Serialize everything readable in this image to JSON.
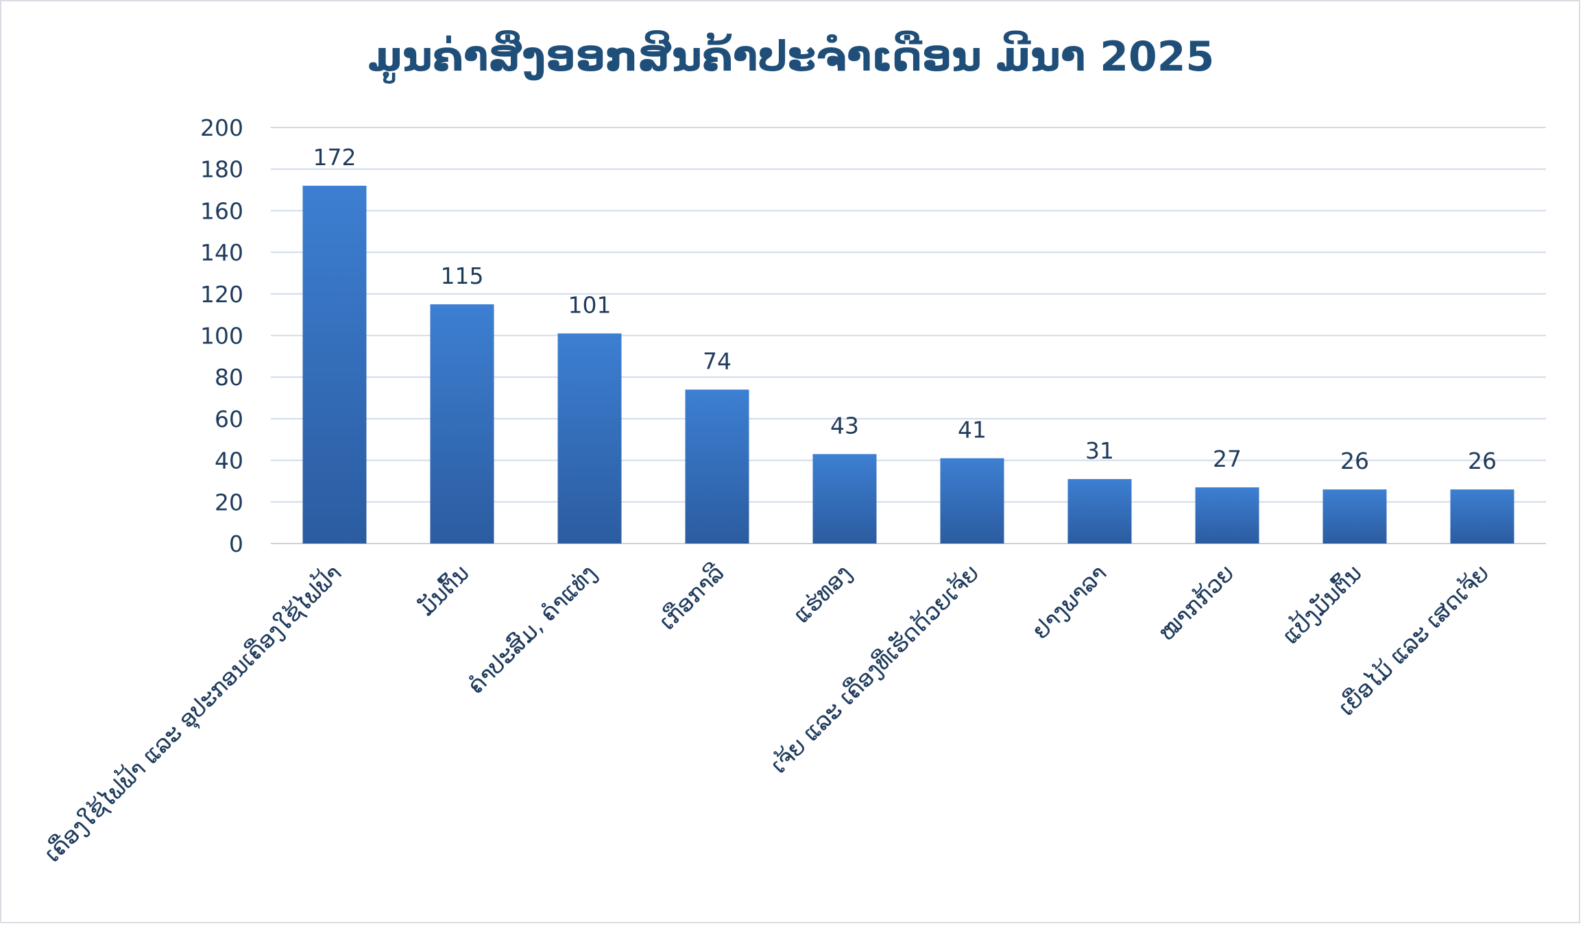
{
  "chart_data": {
    "type": "bar",
    "title": "ມູນຄ່າສິ່ງອອກສິນຄ້າປະຈຳເດືອນ ມີນາ 2025",
    "xlabel": "",
    "ylabel": "",
    "categories": [
      "ເຄື່ອງໃຊ້ໄຟຟ້າ ແລະ ອຸປະກອນເຄື່ອງໃຊ້ໄຟຟ້າ",
      "ມັນຕົ້ນ",
      "ຄຳປະສົມ, ຄຳແທ່ງ",
      "ເກືອກາລີ",
      "ແຮ່ທອງ",
      "ເຈ້ຍ ແລະ ເຄື່ອງທີ່ເຮັດດ້ວຍເຈ້ຍ",
      "ຢາງພາລາ",
      "ໝາກກ້ວຍ",
      "ແປ້ງມັນຕົ້ນ",
      "ເຍື່ອໄມ້ ແລະ ເສດເຈ້ຍ"
    ],
    "values": [
      172,
      115,
      101,
      74,
      43,
      41,
      31,
      27,
      26,
      26
    ],
    "ylim": [
      0,
      200
    ],
    "yticks": [
      "0",
      "20",
      "40",
      "60",
      "80",
      "100",
      "120",
      "140",
      "160",
      "180",
      "200"
    ],
    "grid": true,
    "legend": "none",
    "colors": {
      "bar_top": "#3d7fd2",
      "bar_bottom": "#2b5ca0",
      "title": "#1f4e79",
      "text": "#1f3b5c",
      "grid": "#d0dbe8"
    }
  }
}
